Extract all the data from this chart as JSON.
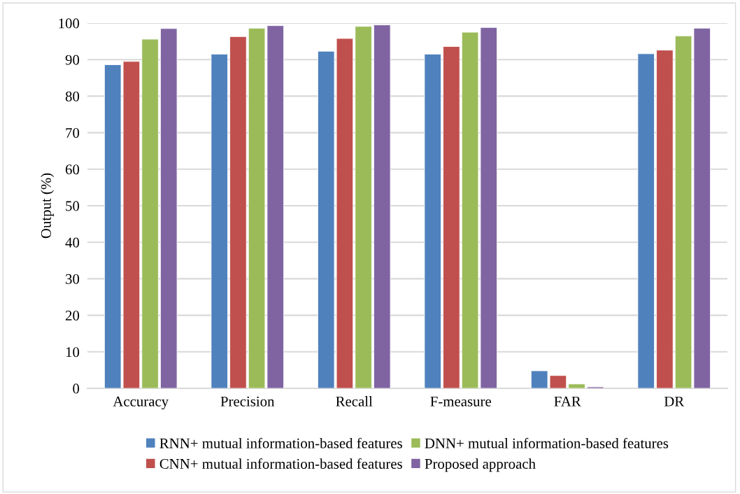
{
  "chart_data": {
    "type": "bar",
    "ylabel": "Output (%)",
    "categories": [
      "Accuracy",
      "Precision",
      "Recall",
      "F-measure",
      "FAR",
      "DR"
    ],
    "series": [
      {
        "name": "RNN+ mutual information-based features",
        "color": "#4f81bd",
        "values": [
          88.6,
          91.5,
          92.3,
          91.5,
          4.8,
          91.6
        ]
      },
      {
        "name": "CNN+ mutual information-based features",
        "color": "#c0504d",
        "values": [
          89.5,
          96.3,
          95.8,
          93.6,
          3.5,
          92.6
        ]
      },
      {
        "name": "DNN+ mutual information-based features",
        "color": "#9bbb59",
        "values": [
          95.6,
          98.6,
          99.1,
          97.5,
          1.2,
          96.5
        ]
      },
      {
        "name": "Proposed approach",
        "color": "#8064a2",
        "values": [
          98.5,
          99.3,
          99.5,
          98.8,
          0.4,
          98.6
        ]
      }
    ],
    "ylim": [
      0,
      100
    ],
    "yticks": [
      0,
      10,
      20,
      30,
      40,
      50,
      60,
      70,
      80,
      90,
      100
    ],
    "grid": "y",
    "legend": "bottom"
  }
}
